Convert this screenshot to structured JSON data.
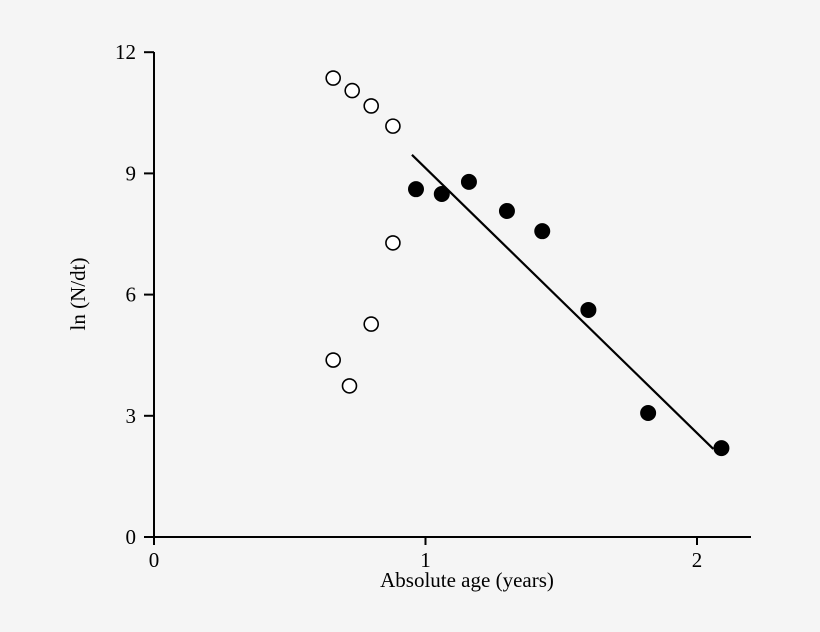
{
  "chart_data": {
    "type": "scatter",
    "title": "",
    "xlabel": "Absolute age (years)",
    "ylabel": "ln (N/dt)",
    "xlim": [
      0,
      2.2
    ],
    "ylim": [
      0,
      12
    ],
    "xticks": [
      "0",
      "1",
      "2"
    ],
    "yticks": [
      "0",
      "3",
      "6",
      "9",
      "12"
    ],
    "grid": false,
    "legend": "none",
    "series": [
      {
        "marker": "open-circle",
        "x": [
          0.66,
          0.73,
          0.8,
          0.88,
          0.88,
          0.8,
          0.66,
          0.72
        ],
        "y": [
          11.36,
          11.05,
          10.67,
          10.17,
          7.28,
          5.27,
          4.38,
          3.74
        ]
      },
      {
        "marker": "filled-circle",
        "x": [
          0.965,
          1.06,
          1.16,
          1.3,
          1.43,
          1.6,
          1.82,
          2.09
        ],
        "y": [
          8.61,
          8.49,
          8.79,
          8.07,
          7.57,
          5.62,
          3.07,
          2.2
        ]
      }
    ],
    "fit_line": {
      "x": [
        0.95,
        2.06
      ],
      "y": [
        9.46,
        2.18
      ]
    }
  }
}
